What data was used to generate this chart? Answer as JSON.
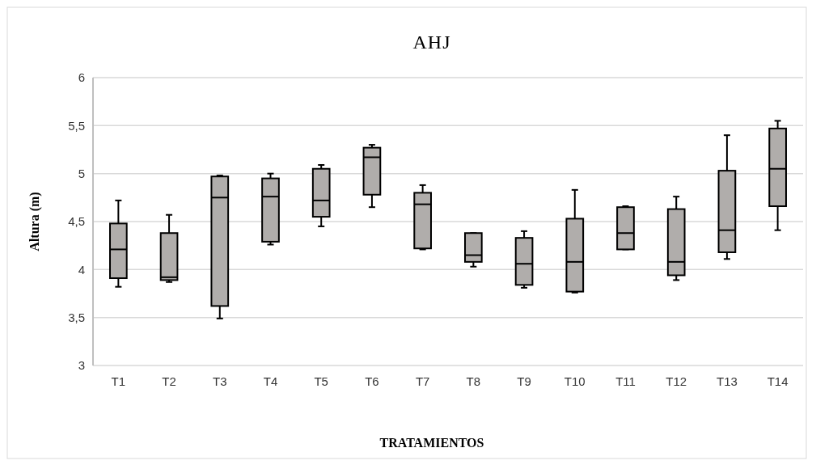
{
  "chart_data": {
    "type": "box",
    "title": "AHJ",
    "xlabel": "TRATAMIENTOS",
    "ylabel": "Altura (m)",
    "categories": [
      "T1",
      "T2",
      "T3",
      "T4",
      "T5",
      "T6",
      "T7",
      "T8",
      "T9",
      "T10",
      "T11",
      "T12",
      "T13",
      "T14"
    ],
    "color": "#b0adab",
    "boxes": [
      {
        "low": 3.82,
        "q1": 3.91,
        "median": 4.21,
        "q3": 4.48,
        "high": 4.72
      },
      {
        "low": 3.87,
        "q1": 3.89,
        "median": 3.92,
        "q3": 4.38,
        "high": 4.57
      },
      {
        "low": 3.49,
        "q1": 3.62,
        "median": 4.75,
        "q3": 4.97,
        "high": 4.98
      },
      {
        "low": 4.26,
        "q1": 4.29,
        "median": 4.76,
        "q3": 4.95,
        "high": 5.0
      },
      {
        "low": 4.45,
        "q1": 4.55,
        "median": 4.72,
        "q3": 5.05,
        "high": 5.09
      },
      {
        "low": 4.65,
        "q1": 4.78,
        "median": 5.17,
        "q3": 5.27,
        "high": 5.3
      },
      {
        "low": 4.21,
        "q1": 4.22,
        "median": 4.68,
        "q3": 4.8,
        "high": 4.88
      },
      {
        "low": 4.03,
        "q1": 4.08,
        "median": 4.15,
        "q3": 4.38,
        "high": 4.38
      },
      {
        "low": 3.81,
        "q1": 3.84,
        "median": 4.06,
        "q3": 4.33,
        "high": 4.4
      },
      {
        "low": 3.76,
        "q1": 3.77,
        "median": 4.08,
        "q3": 4.53,
        "high": 4.83
      },
      {
        "low": 4.21,
        "q1": 4.21,
        "median": 4.38,
        "q3": 4.65,
        "high": 4.66
      },
      {
        "low": 3.89,
        "q1": 3.94,
        "median": 4.08,
        "q3": 4.63,
        "high": 4.76
      },
      {
        "low": 4.11,
        "q1": 4.18,
        "median": 4.41,
        "q3": 5.03,
        "high": 5.4
      },
      {
        "low": 4.41,
        "q1": 4.66,
        "median": 5.05,
        "q3": 5.47,
        "high": 5.55
      }
    ],
    "ylim": [
      3,
      6
    ],
    "yticks": [
      3,
      {
        "value": 3.5,
        "label": "3,5"
      },
      4,
      {
        "value": 4.5,
        "label": "4,5"
      },
      5,
      {
        "value": 5.5,
        "label": "5,5"
      },
      6
    ],
    "grid": "y"
  }
}
